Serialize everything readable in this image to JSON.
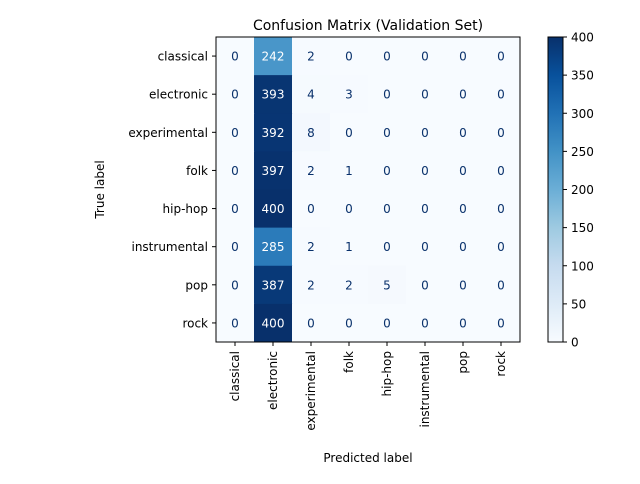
{
  "chart_data": {
    "type": "heatmap",
    "title": "Confusion Matrix (Validation Set)",
    "xlabel": "Predicted label",
    "ylabel": "True label",
    "x_categories": [
      "classical",
      "electronic",
      "experimental",
      "folk",
      "hip-hop",
      "instrumental",
      "pop",
      "rock"
    ],
    "y_categories": [
      "classical",
      "electronic",
      "experimental",
      "folk",
      "hip-hop",
      "instrumental",
      "pop",
      "rock"
    ],
    "values": [
      [
        0,
        242,
        2,
        0,
        0,
        0,
        0,
        0
      ],
      [
        0,
        393,
        4,
        3,
        0,
        0,
        0,
        0
      ],
      [
        0,
        392,
        8,
        0,
        0,
        0,
        0,
        0
      ],
      [
        0,
        397,
        2,
        1,
        0,
        0,
        0,
        0
      ],
      [
        0,
        400,
        0,
        0,
        0,
        0,
        0,
        0
      ],
      [
        0,
        285,
        2,
        1,
        0,
        0,
        0,
        0
      ],
      [
        0,
        387,
        2,
        2,
        5,
        0,
        0,
        0
      ],
      [
        0,
        400,
        0,
        0,
        0,
        0,
        0,
        0
      ]
    ],
    "colormap": "Blues",
    "colormap_stops": [
      "#f7fbff",
      "#deebf7",
      "#c6dbef",
      "#9ecae1",
      "#6baed6",
      "#4292c6",
      "#2171b5",
      "#08519c",
      "#08306b"
    ],
    "color_range": [
      0,
      400
    ],
    "colorbar_ticks": [
      0,
      50,
      100,
      150,
      200,
      250,
      300,
      350,
      400
    ],
    "grid": false,
    "colorbar_position": "right"
  }
}
